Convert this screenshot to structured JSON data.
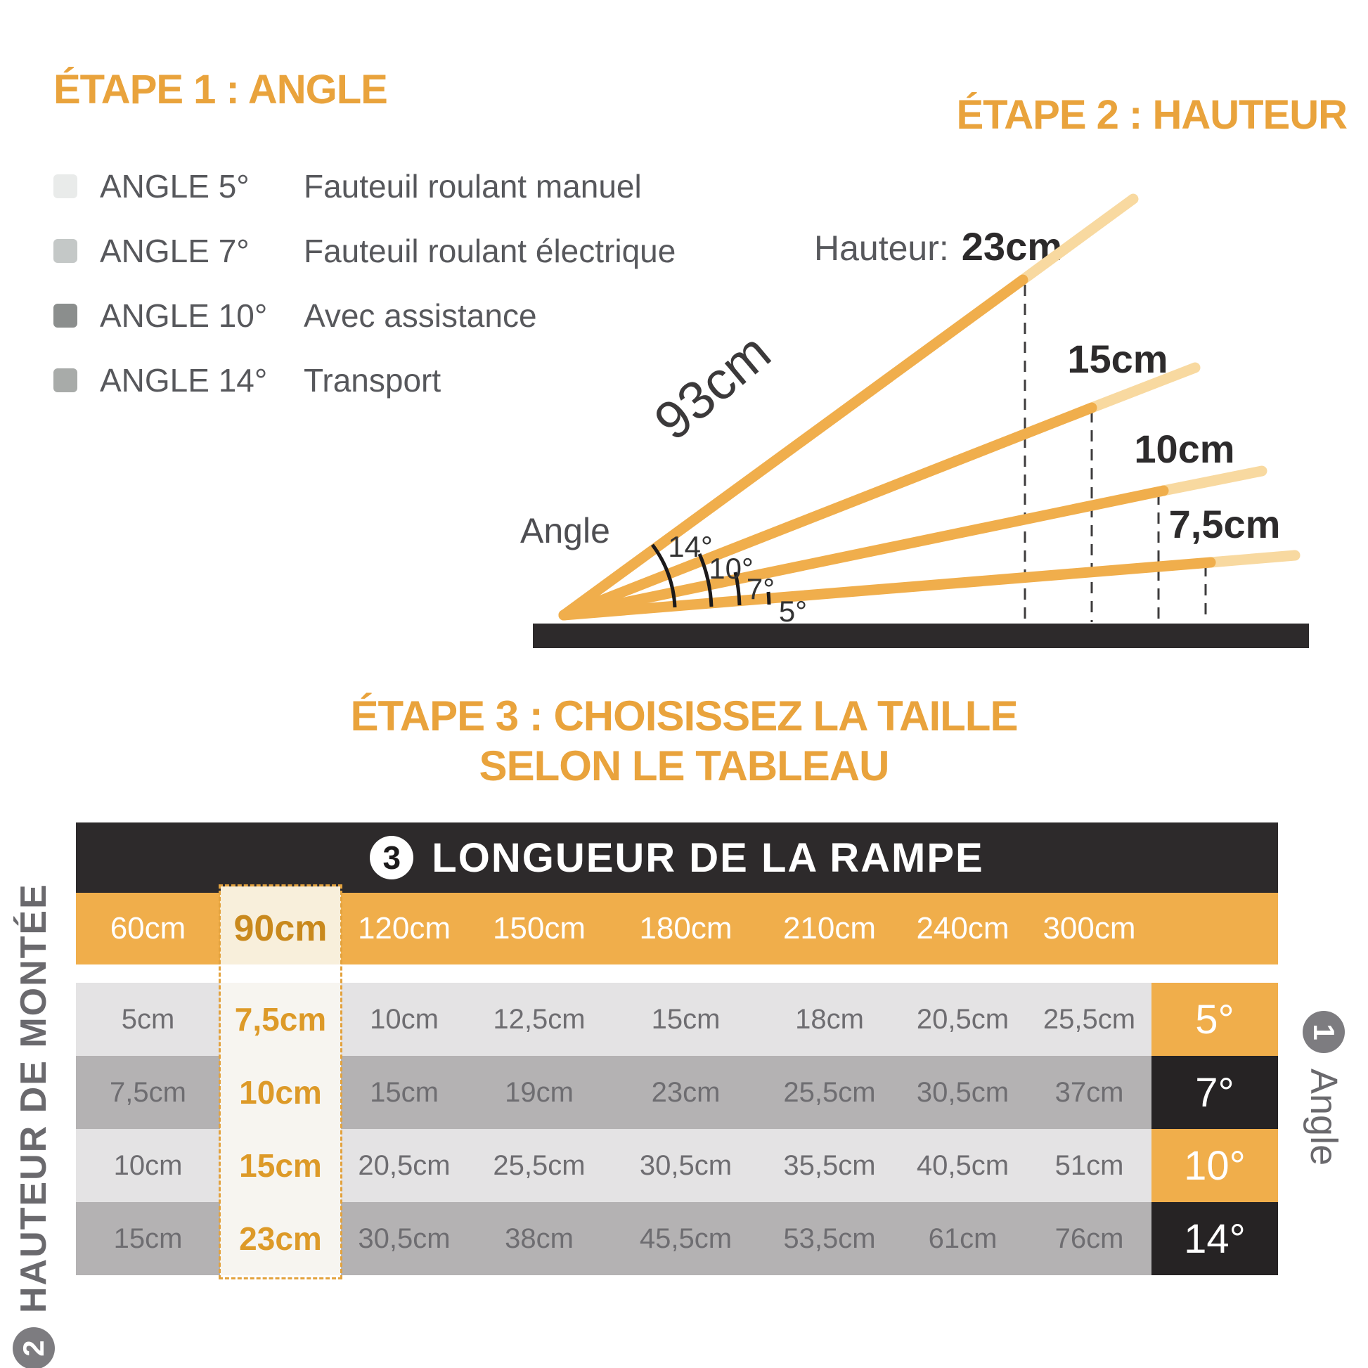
{
  "colors": {
    "accent_orange": "#e9a33c",
    "table_orange": "#f0ae4b",
    "dark_bar": "#2d2a2b",
    "angle_cell_dark": "#262324",
    "row_light": "#e4e3e4",
    "row_dark": "#b4b2b3",
    "highlight_cream": "#f8efdb",
    "highlight_cell": "#f7f5f0",
    "highlight_text": "#dd9a28",
    "ramp_orange": "#f0ae4c",
    "ramp_pale": "#f8d9a0",
    "text_gray": "#57585c",
    "badge_gray": "#7d7c80"
  },
  "step1": {
    "title": "ÉTAPE 1 : ANGLE",
    "legend": [
      {
        "label": "ANGLE 5°",
        "desc": "Fauteuil roulant manuel",
        "swatch": "#e9ebea"
      },
      {
        "label": "ANGLE 7°",
        "desc": "Fauteuil roulant électrique",
        "swatch": "#c4c8c7"
      },
      {
        "label": "ANGLE 10°",
        "desc": "Avec assistance",
        "swatch": "#8b8e8d"
      },
      {
        "label": "ANGLE 14°",
        "desc": "Transport",
        "swatch": "#a8aba9"
      }
    ]
  },
  "step2": {
    "title": "ÉTAPE 2 : HAUTEUR",
    "hauteur_label": "Hauteur:",
    "hauteur_value": "23cm",
    "ramp_label": "93cm",
    "angle_label": "Angle",
    "angle_ticks": [
      "14°",
      "10°",
      "7°",
      "5°"
    ],
    "height_labels": [
      "15cm",
      "10cm",
      "7,5cm"
    ]
  },
  "step3": {
    "title_line1": "ÉTAPE 3 : CHOISISSEZ LA TAILLE",
    "title_line2": "SELON LE TABLEAU"
  },
  "table": {
    "badge": "3",
    "title": "LONGUEUR DE LA RAMPE",
    "columns": [
      "60cm",
      "90cm",
      "120cm",
      "150cm",
      "180cm",
      "210cm",
      "240cm",
      "300cm"
    ],
    "highlight_column_index": 1,
    "rows": [
      {
        "cells": [
          "5cm",
          "7,5cm",
          "10cm",
          "12,5cm",
          "15cm",
          "18cm",
          "20,5cm",
          "25,5cm"
        ],
        "angle": "5°",
        "angle_style": "orange"
      },
      {
        "cells": [
          "7,5cm",
          "10cm",
          "15cm",
          "19cm",
          "23cm",
          "25,5cm",
          "30,5cm",
          "37cm"
        ],
        "angle": "7°",
        "angle_style": "dark"
      },
      {
        "cells": [
          "10cm",
          "15cm",
          "20,5cm",
          "25,5cm",
          "30,5cm",
          "35,5cm",
          "40,5cm",
          "51cm"
        ],
        "angle": "10°",
        "angle_style": "orange"
      },
      {
        "cells": [
          "15cm",
          "23cm",
          "30,5cm",
          "38cm",
          "45,5cm",
          "53,5cm",
          "61cm",
          "76cm"
        ],
        "angle": "14°",
        "angle_style": "dark"
      }
    ],
    "left_axis": {
      "badge": "2",
      "label": "HAUTEUR DE MONTÉE"
    },
    "right_axis": {
      "badge": "1",
      "label": "Angle"
    }
  }
}
